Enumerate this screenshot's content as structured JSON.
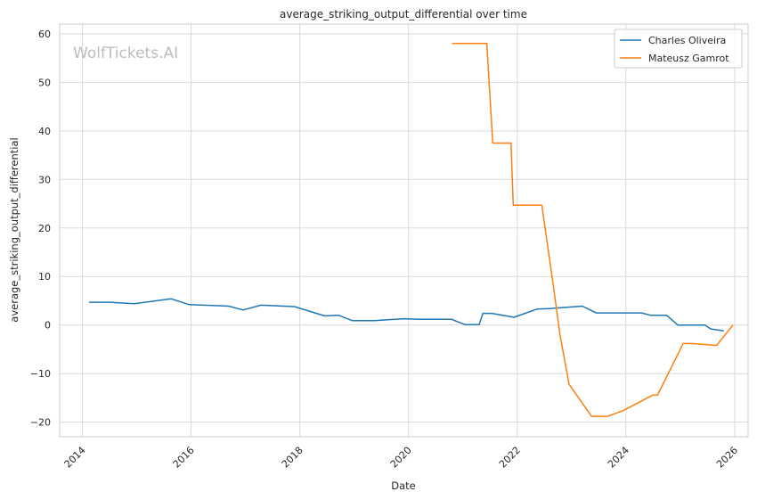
{
  "watermark": "WolfTickets.AI",
  "chart_data": {
    "type": "line",
    "title": "average_striking_output_differential over time",
    "xlabel": "Date",
    "ylabel": "average_striking_output_differential",
    "xlim": [
      "2013-08-01",
      "2026-04-01"
    ],
    "ylim": [
      -23,
      62
    ],
    "x_ticks": [
      "2014",
      "2016",
      "2018",
      "2020",
      "2022",
      "2024",
      "2026"
    ],
    "y_ticks": [
      -20,
      -10,
      0,
      10,
      20,
      30,
      40,
      50,
      60
    ],
    "grid": true,
    "legend": "top-right",
    "series": [
      {
        "name": "Charles Oliveira",
        "color": "#1f77b4",
        "points": [
          [
            "2014-02-15",
            4.7
          ],
          [
            "2014-07-01",
            4.7
          ],
          [
            "2014-12-15",
            4.4
          ],
          [
            "2015-08-20",
            5.4
          ],
          [
            "2015-12-20",
            4.2
          ],
          [
            "2016-09-10",
            3.9
          ],
          [
            "2016-12-15",
            3.1
          ],
          [
            "2017-04-15",
            4.1
          ],
          [
            "2017-11-25",
            3.8
          ],
          [
            "2018-06-15",
            1.9
          ],
          [
            "2018-09-20",
            2.0
          ],
          [
            "2018-12-20",
            0.9
          ],
          [
            "2019-05-15",
            0.9
          ],
          [
            "2019-12-01",
            1.3
          ],
          [
            "2020-03-15",
            1.2
          ],
          [
            "2020-10-15",
            1.2
          ],
          [
            "2021-01-15",
            0.1
          ],
          [
            "2021-04-20",
            0.1
          ],
          [
            "2021-05-15",
            2.4
          ],
          [
            "2021-07-15",
            2.4
          ],
          [
            "2021-12-10",
            1.6
          ],
          [
            "2022-05-15",
            3.3
          ],
          [
            "2022-08-01",
            3.4
          ],
          [
            "2023-03-15",
            3.9
          ],
          [
            "2023-06-15",
            2.5
          ],
          [
            "2024-04-15",
            2.5
          ],
          [
            "2024-06-15",
            2.0
          ],
          [
            "2024-10-01",
            2.0
          ],
          [
            "2024-12-15",
            0.0
          ],
          [
            "2025-06-15",
            0.0
          ],
          [
            "2025-07-25",
            -0.8
          ],
          [
            "2025-10-20",
            -1.2
          ]
        ]
      },
      {
        "name": "Mateusz Gamrot",
        "color": "#ff7f0e",
        "points": [
          [
            "2020-10-20",
            58.0
          ],
          [
            "2021-06-10",
            58.0
          ],
          [
            "2021-07-20",
            37.5
          ],
          [
            "2021-11-20",
            37.5
          ],
          [
            "2021-12-05",
            24.7
          ],
          [
            "2022-06-15",
            24.7
          ],
          [
            "2022-09-01",
            8.0
          ],
          [
            "2022-10-15",
            -2.0
          ],
          [
            "2022-12-15",
            -12.2
          ],
          [
            "2023-05-15",
            -18.8
          ],
          [
            "2023-09-01",
            -18.8
          ],
          [
            "2023-12-15",
            -17.6
          ],
          [
            "2024-07-01",
            -14.4
          ],
          [
            "2024-08-01",
            -14.4
          ],
          [
            "2025-01-20",
            -3.8
          ],
          [
            "2025-03-15",
            -3.8
          ],
          [
            "2025-09-01",
            -4.2
          ],
          [
            "2025-12-20",
            0.0
          ]
        ]
      }
    ]
  }
}
